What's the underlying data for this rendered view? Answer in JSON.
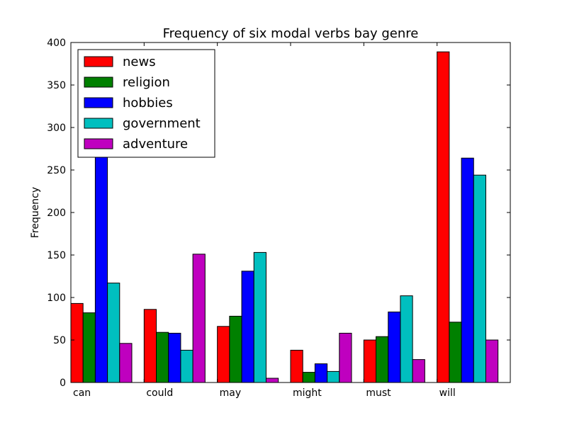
{
  "chart_data": {
    "type": "bar",
    "title": "Frequency of six modal verbs bay genre",
    "xlabel": "",
    "ylabel": "Frequency",
    "ylim": [
      0,
      400
    ],
    "yticks": [
      0,
      50,
      100,
      150,
      200,
      250,
      300,
      350,
      400
    ],
    "categories": [
      "can",
      "could",
      "may",
      "might",
      "must",
      "will"
    ],
    "legend_position": "top-left",
    "grid": false,
    "series": [
      {
        "name": "news",
        "color": "#ff0000",
        "values": [
          93,
          86,
          66,
          38,
          50,
          389
        ]
      },
      {
        "name": "religion",
        "color": "#008000",
        "values": [
          82,
          59,
          78,
          12,
          54,
          71
        ]
      },
      {
        "name": "hobbies",
        "color": "#0000ff",
        "values": [
          268,
          58,
          131,
          22,
          83,
          264
        ]
      },
      {
        "name": "government",
        "color": "#00bfbf",
        "values": [
          117,
          38,
          153,
          13,
          102,
          244
        ]
      },
      {
        "name": "adventure",
        "color": "#bf00bf",
        "values": [
          46,
          151,
          5,
          58,
          27,
          50
        ]
      }
    ]
  }
}
